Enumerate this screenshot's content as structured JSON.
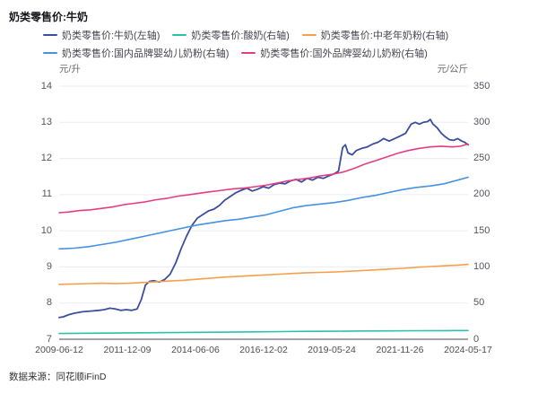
{
  "page": {
    "title": "奶类零售价:牛奶",
    "source_note": "数据来源：同花顺iFinD"
  },
  "chart_data": {
    "type": "line",
    "title": "奶类零售价:牛奶",
    "grid": true,
    "legend_position": "top",
    "legend_rows": [
      [
        0,
        1,
        2
      ],
      [
        3,
        4
      ]
    ],
    "left_axis": {
      "label": "元/升",
      "min": 7,
      "max": 14,
      "ticks": [
        14,
        13,
        12,
        11,
        10,
        9,
        8,
        7
      ]
    },
    "right_axis": {
      "label": "元/公斤",
      "min": 0,
      "max": 350,
      "ticks": [
        350,
        300,
        250,
        200,
        150,
        100,
        50,
        0
      ]
    },
    "x_axis": {
      "domain": [
        2009.45,
        2024.38
      ],
      "tick_labels": [
        "2009-06-12",
        "2011-12-09",
        "2014-06-06",
        "2016-12-02",
        "2019-05-24",
        "2021-11-26",
        "2024-05-17"
      ]
    },
    "series": [
      {
        "name": "奶类零售价:牛奶(左轴)",
        "axis": "left",
        "color": "#3C4E9E",
        "points": [
          [
            2009.45,
            7.6
          ],
          [
            2009.6,
            7.62
          ],
          [
            2009.8,
            7.68
          ],
          [
            2010.0,
            7.72
          ],
          [
            2010.3,
            7.76
          ],
          [
            2010.6,
            7.78
          ],
          [
            2010.9,
            7.8
          ],
          [
            2011.1,
            7.82
          ],
          [
            2011.3,
            7.86
          ],
          [
            2011.5,
            7.84
          ],
          [
            2011.7,
            7.8
          ],
          [
            2011.9,
            7.82
          ],
          [
            2012.1,
            7.8
          ],
          [
            2012.3,
            7.84
          ],
          [
            2012.45,
            8.1
          ],
          [
            2012.6,
            8.5
          ],
          [
            2012.75,
            8.6
          ],
          [
            2012.9,
            8.62
          ],
          [
            2013.1,
            8.58
          ],
          [
            2013.3,
            8.65
          ],
          [
            2013.5,
            8.8
          ],
          [
            2013.7,
            9.1
          ],
          [
            2013.9,
            9.5
          ],
          [
            2014.1,
            9.85
          ],
          [
            2014.3,
            10.15
          ],
          [
            2014.5,
            10.35
          ],
          [
            2014.7,
            10.45
          ],
          [
            2014.9,
            10.55
          ],
          [
            2015.1,
            10.6
          ],
          [
            2015.3,
            10.7
          ],
          [
            2015.5,
            10.85
          ],
          [
            2015.7,
            10.95
          ],
          [
            2015.9,
            11.05
          ],
          [
            2016.1,
            11.12
          ],
          [
            2016.3,
            11.18
          ],
          [
            2016.5,
            11.1
          ],
          [
            2016.7,
            11.15
          ],
          [
            2016.9,
            11.22
          ],
          [
            2017.1,
            11.18
          ],
          [
            2017.3,
            11.28
          ],
          [
            2017.5,
            11.32
          ],
          [
            2017.7,
            11.3
          ],
          [
            2017.9,
            11.38
          ],
          [
            2018.1,
            11.42
          ],
          [
            2018.3,
            11.35
          ],
          [
            2018.5,
            11.45
          ],
          [
            2018.7,
            11.4
          ],
          [
            2018.9,
            11.48
          ],
          [
            2019.1,
            11.45
          ],
          [
            2019.3,
            11.52
          ],
          [
            2019.5,
            11.58
          ],
          [
            2019.65,
            11.65
          ],
          [
            2019.8,
            12.3
          ],
          [
            2019.9,
            12.38
          ],
          [
            2020.0,
            12.15
          ],
          [
            2020.15,
            12.1
          ],
          [
            2020.3,
            12.22
          ],
          [
            2020.5,
            12.28
          ],
          [
            2020.7,
            12.32
          ],
          [
            2020.9,
            12.4
          ],
          [
            2021.1,
            12.45
          ],
          [
            2021.3,
            12.55
          ],
          [
            2021.5,
            12.48
          ],
          [
            2021.7,
            12.55
          ],
          [
            2021.9,
            12.62
          ],
          [
            2022.1,
            12.7
          ],
          [
            2022.3,
            12.95
          ],
          [
            2022.45,
            13.0
          ],
          [
            2022.6,
            12.95
          ],
          [
            2022.75,
            13.0
          ],
          [
            2022.9,
            13.02
          ],
          [
            2023.0,
            13.08
          ],
          [
            2023.1,
            12.95
          ],
          [
            2023.25,
            12.85
          ],
          [
            2023.4,
            12.7
          ],
          [
            2023.55,
            12.6
          ],
          [
            2023.7,
            12.52
          ],
          [
            2023.85,
            12.5
          ],
          [
            2024.0,
            12.55
          ],
          [
            2024.15,
            12.48
          ],
          [
            2024.25,
            12.45
          ],
          [
            2024.38,
            12.38
          ]
        ]
      },
      {
        "name": "奶类零售价:酸奶(右轴)",
        "axis": "right",
        "color": "#2EBFAD",
        "points": [
          [
            2009.45,
            8
          ],
          [
            2010.5,
            8.3
          ],
          [
            2011.5,
            8.6
          ],
          [
            2012.5,
            8.9
          ],
          [
            2013.5,
            9.2
          ],
          [
            2014.5,
            9.5
          ],
          [
            2015.5,
            9.8
          ],
          [
            2016.5,
            10.2
          ],
          [
            2017.5,
            10.6
          ],
          [
            2018.5,
            10.9
          ],
          [
            2019.5,
            11.1
          ],
          [
            2020.5,
            11.4
          ],
          [
            2021.5,
            11.6
          ],
          [
            2022.5,
            11.8
          ],
          [
            2023.5,
            11.9
          ],
          [
            2024.38,
            12
          ]
        ]
      },
      {
        "name": "奶类零售价:中老年奶粉(右轴)",
        "axis": "right",
        "color": "#F6A04B",
        "points": [
          [
            2009.45,
            76
          ],
          [
            2010,
            76.5
          ],
          [
            2010.5,
            77
          ],
          [
            2011,
            77.5
          ],
          [
            2011.5,
            77
          ],
          [
            2012,
            77.5
          ],
          [
            2012.5,
            78.5
          ],
          [
            2013,
            79.5
          ],
          [
            2013.5,
            80.5
          ],
          [
            2014,
            81.5
          ],
          [
            2014.5,
            83
          ],
          [
            2015,
            84.5
          ],
          [
            2015.5,
            86
          ],
          [
            2016,
            87
          ],
          [
            2016.5,
            88
          ],
          [
            2017,
            89
          ],
          [
            2017.5,
            90
          ],
          [
            2018,
            91
          ],
          [
            2018.5,
            92
          ],
          [
            2019,
            92.5
          ],
          [
            2019.5,
            93
          ],
          [
            2020,
            94
          ],
          [
            2020.5,
            95
          ],
          [
            2021,
            96
          ],
          [
            2021.5,
            97
          ],
          [
            2022,
            98
          ],
          [
            2022.5,
            99.5
          ],
          [
            2023,
            100.5
          ],
          [
            2023.5,
            101.5
          ],
          [
            2024,
            102.5
          ],
          [
            2024.38,
            103.5
          ]
        ]
      },
      {
        "name": "奶类零售价:国内品牌婴幼儿奶粉(右轴)",
        "axis": "right",
        "color": "#4691E0",
        "points": [
          [
            2009.45,
            125
          ],
          [
            2010,
            126
          ],
          [
            2010.5,
            128
          ],
          [
            2011,
            131
          ],
          [
            2011.5,
            134
          ],
          [
            2012,
            138
          ],
          [
            2012.5,
            142
          ],
          [
            2013,
            146
          ],
          [
            2013.5,
            150
          ],
          [
            2014,
            154
          ],
          [
            2014.5,
            158
          ],
          [
            2015,
            161
          ],
          [
            2015.5,
            164
          ],
          [
            2016,
            166
          ],
          [
            2016.5,
            169
          ],
          [
            2017,
            172
          ],
          [
            2017.5,
            177
          ],
          [
            2018,
            182
          ],
          [
            2018.5,
            185
          ],
          [
            2019,
            187
          ],
          [
            2019.5,
            189
          ],
          [
            2020,
            192
          ],
          [
            2020.5,
            196
          ],
          [
            2021,
            199
          ],
          [
            2021.5,
            203
          ],
          [
            2022,
            207
          ],
          [
            2022.5,
            210
          ],
          [
            2023,
            212
          ],
          [
            2023.5,
            215
          ],
          [
            2024,
            220
          ],
          [
            2024.38,
            224
          ]
        ]
      },
      {
        "name": "奶类零售价:国外品牌婴幼儿奶粉(右轴)",
        "axis": "right",
        "color": "#E63D82",
        "points": [
          [
            2009.45,
            175
          ],
          [
            2009.8,
            176
          ],
          [
            2010.2,
            178
          ],
          [
            2010.6,
            179
          ],
          [
            2011,
            181
          ],
          [
            2011.4,
            183
          ],
          [
            2011.8,
            186
          ],
          [
            2012.2,
            188
          ],
          [
            2012.6,
            190
          ],
          [
            2013,
            193
          ],
          [
            2013.4,
            195
          ],
          [
            2013.8,
            198
          ],
          [
            2014.2,
            200
          ],
          [
            2014.6,
            202
          ],
          [
            2015,
            204
          ],
          [
            2015.4,
            206
          ],
          [
            2015.8,
            208
          ],
          [
            2016.2,
            209
          ],
          [
            2016.6,
            211
          ],
          [
            2017,
            213
          ],
          [
            2017.4,
            216
          ],
          [
            2017.8,
            219
          ],
          [
            2018.2,
            221
          ],
          [
            2018.6,
            223
          ],
          [
            2019,
            226
          ],
          [
            2019.4,
            228
          ],
          [
            2019.8,
            231
          ],
          [
            2020.2,
            236
          ],
          [
            2020.6,
            242
          ],
          [
            2021,
            247
          ],
          [
            2021.4,
            252
          ],
          [
            2021.8,
            257
          ],
          [
            2022.2,
            261
          ],
          [
            2022.6,
            264
          ],
          [
            2023,
            266
          ],
          [
            2023.4,
            267
          ],
          [
            2023.8,
            266
          ],
          [
            2024.1,
            267
          ],
          [
            2024.38,
            270
          ]
        ]
      }
    ],
    "colors": {
      "grid": "#ECECF4",
      "axis_line": "#A3A3B0",
      "tick_text": "#55555E",
      "legend_text": "#45454E"
    }
  }
}
